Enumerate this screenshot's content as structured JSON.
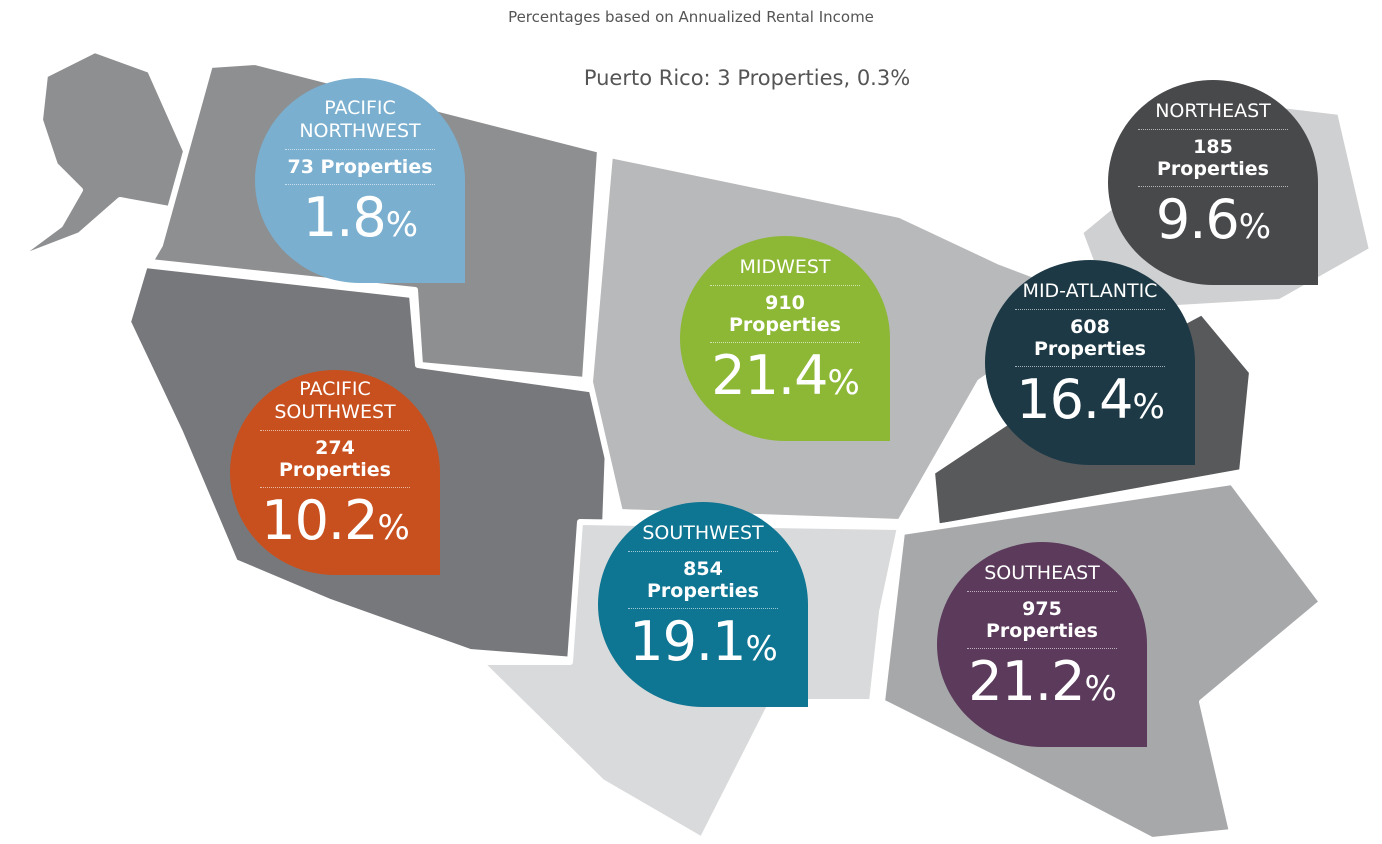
{
  "subtitle": "Percentages based on Annualized Rental Income",
  "note": "Puerto Rico: 3 Properties, 0.3%",
  "regions": [
    {
      "name": "PACIFIC NORTHWEST",
      "properties": "73 Properties",
      "percent": "1.8%",
      "color": "#7aafcf"
    },
    {
      "name": "NORTHEAST",
      "properties": "185 Properties",
      "percent": "9.6%",
      "color": "#48494b"
    },
    {
      "name": "MIDWEST",
      "properties": "910 Properties",
      "percent": "21.4%",
      "color": "#8db836"
    },
    {
      "name": "MID-ATLANTIC",
      "properties": "608 Properties",
      "percent": "16.4%",
      "color": "#1d3946"
    },
    {
      "name": "PACIFIC SOUTHWEST",
      "properties": "274 Properties",
      "percent": "10.2%",
      "color": "#c8501f"
    },
    {
      "name": "SOUTHWEST",
      "properties": "854 Properties",
      "percent": "19.1%",
      "color": "#0e7592"
    },
    {
      "name": "SOUTHEAST",
      "properties": "975 Properties",
      "percent": "21.2%",
      "color": "#5b3a5b"
    }
  ]
}
